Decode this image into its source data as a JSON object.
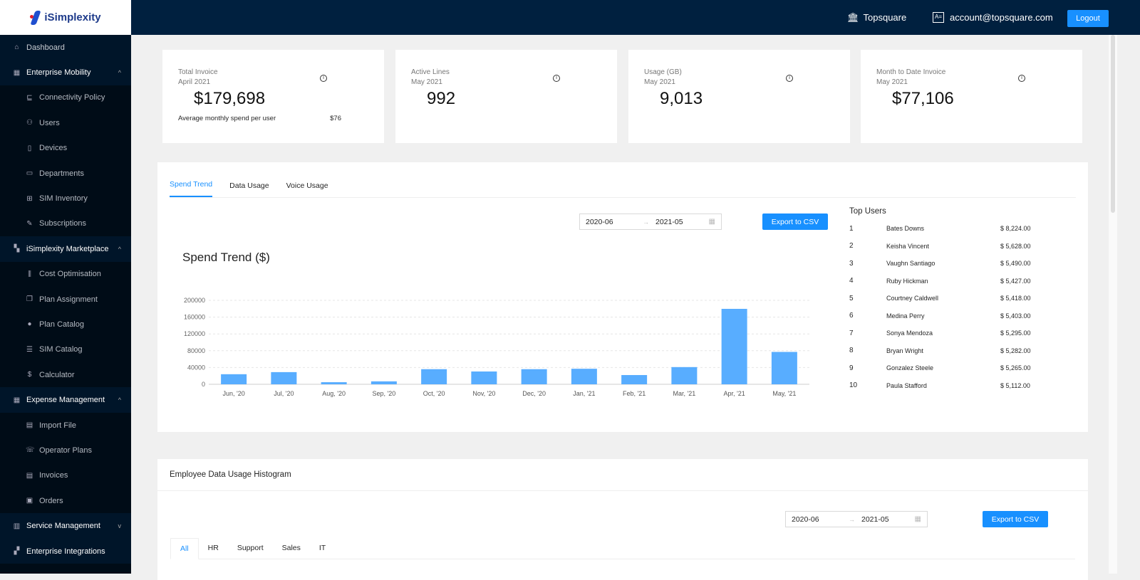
{
  "brand": {
    "name": "iSimplexity"
  },
  "header": {
    "org": "Topsquare",
    "account": "account@topsquare.com",
    "logout": "Logout"
  },
  "sidebar": {
    "items": [
      {
        "label": "Dashboard",
        "type": "top",
        "icon": "home-icon",
        "glyph": "⌂"
      },
      {
        "label": "Enterprise Mobility",
        "type": "group",
        "icon": "grid-icon",
        "glyph": "▦",
        "chev": "^"
      },
      {
        "label": "Connectivity Policy",
        "type": "sub",
        "icon": "cart-icon",
        "glyph": "⊑"
      },
      {
        "label": "Users",
        "type": "sub",
        "icon": "users-icon",
        "glyph": "⚇"
      },
      {
        "label": "Devices",
        "type": "sub",
        "icon": "mobile-icon",
        "glyph": "▯"
      },
      {
        "label": "Departments",
        "type": "sub",
        "icon": "id-card-icon",
        "glyph": "▭"
      },
      {
        "label": "SIM Inventory",
        "type": "sub",
        "icon": "sim-icon",
        "glyph": "⊞"
      },
      {
        "label": "Subscriptions",
        "type": "sub",
        "icon": "plug-icon",
        "glyph": "✎"
      },
      {
        "label": "iSimplexity Marketplace",
        "type": "group",
        "icon": "apps-icon",
        "glyph": "▚",
        "chev": "^"
      },
      {
        "label": "Cost Optimisation",
        "type": "sub",
        "icon": "sliders-icon",
        "glyph": "⫼"
      },
      {
        "label": "Plan Assignment",
        "type": "sub",
        "icon": "clipboard-icon",
        "glyph": "❐"
      },
      {
        "label": "Plan Catalog",
        "type": "sub",
        "icon": "chat-icon",
        "glyph": "●"
      },
      {
        "label": "SIM Catalog",
        "type": "sub",
        "icon": "list-icon",
        "glyph": "☰"
      },
      {
        "label": "Calculator",
        "type": "sub",
        "icon": "dollar-icon",
        "glyph": "$"
      },
      {
        "label": "Expense Management",
        "type": "group",
        "icon": "calculator-icon",
        "glyph": "▦",
        "chev": "^"
      },
      {
        "label": "Import File",
        "type": "sub",
        "icon": "file-icon",
        "glyph": "▤"
      },
      {
        "label": "Operator Plans",
        "type": "sub",
        "icon": "phone-icon",
        "glyph": "☏"
      },
      {
        "label": "Invoices",
        "type": "sub",
        "icon": "invoice-icon",
        "glyph": "▤"
      },
      {
        "label": "Orders",
        "type": "sub",
        "icon": "wallet-icon",
        "glyph": "▣"
      },
      {
        "label": "Service Management",
        "type": "group",
        "icon": "tools-icon",
        "glyph": "▥",
        "chev": "v"
      },
      {
        "label": "Enterprise Integrations",
        "type": "group",
        "icon": "integration-icon",
        "glyph": "▞",
        "chev": ""
      }
    ]
  },
  "cards": [
    {
      "label": "Total Invoice",
      "period": "April 2021",
      "value": "$179,698",
      "avg_label": "Average monthly spend per user",
      "avg_value": "$76"
    },
    {
      "label": "Active Lines",
      "period": "May 2021",
      "value": "992"
    },
    {
      "label": "Usage (GB)",
      "period": "May 2021",
      "value": "9,013"
    },
    {
      "label": "Month to Date Invoice",
      "period": "May 2021",
      "value": "$77,106"
    }
  ],
  "trend": {
    "tabs": [
      "Spend Trend",
      "Data Usage",
      "Voice Usage"
    ],
    "active_tab": 0,
    "range_start": "2020-06",
    "range_end": "2021-05",
    "export": "Export to CSV"
  },
  "chart_data": {
    "type": "bar",
    "title": "Spend Trend ($)",
    "xlabel": "",
    "ylabel": "",
    "ylim": [
      0,
      200000
    ],
    "yticks": [
      0,
      40000,
      80000,
      120000,
      160000,
      200000
    ],
    "grid": true,
    "color": "#58adff",
    "categories": [
      "Jun, '20",
      "Jul, '20",
      "Aug, '20",
      "Sep, '20",
      "Oct, '20",
      "Nov, '20",
      "Dec, '20",
      "Jan, '21",
      "Feb, '21",
      "Mar, '21",
      "Apr, '21",
      "May, '21"
    ],
    "values": [
      24000,
      29000,
      5000,
      7000,
      36000,
      30500,
      36000,
      37000,
      22000,
      41000,
      179698,
      77106
    ]
  },
  "top_users": {
    "title": "Top Users",
    "rows": [
      {
        "rank": "1",
        "name": "Bates Downs",
        "amount": "$ 8,224.00"
      },
      {
        "rank": "2",
        "name": "Keisha Vincent",
        "amount": "$ 5,628.00"
      },
      {
        "rank": "3",
        "name": "Vaughn Santiago",
        "amount": "$ 5,490.00"
      },
      {
        "rank": "4",
        "name": "Ruby Hickman",
        "amount": "$ 5,427.00"
      },
      {
        "rank": "5",
        "name": "Courtney Caldwell",
        "amount": "$ 5,418.00"
      },
      {
        "rank": "6",
        "name": "Medina Perry",
        "amount": "$ 5,403.00"
      },
      {
        "rank": "7",
        "name": "Sonya Mendoza",
        "amount": "$ 5,295.00"
      },
      {
        "rank": "8",
        "name": "Bryan Wright",
        "amount": "$ 5,282.00"
      },
      {
        "rank": "9",
        "name": "Gonzalez Steele",
        "amount": "$ 5,265.00"
      },
      {
        "rank": "10",
        "name": "Paula Stafford",
        "amount": "$ 5,112.00"
      }
    ]
  },
  "histogram": {
    "title": "Employee Data Usage Histogram",
    "range_start": "2020-06",
    "range_end": "2021-05",
    "export": "Export to CSV",
    "tabs": [
      "All",
      "HR",
      "Support",
      "Sales",
      "IT"
    ],
    "active_tab": 0
  }
}
